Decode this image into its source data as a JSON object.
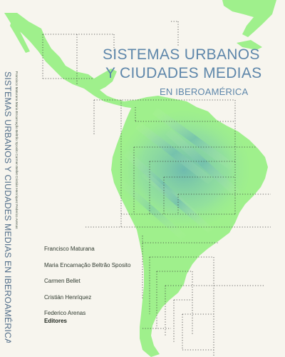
{
  "cover": {
    "title_line1": "SISTEMAS URBANOS",
    "title_line2": "Y CIUDADES MEDIAS",
    "title_line3": "EN IBEROAMÉRICA",
    "authors": [
      "Francisco Maturana",
      "Maria Encarnação Beltrão Sposito",
      "Carmen Bellet",
      "Cristián Henríquez",
      "Federico Arenas"
    ],
    "editors_label": "Editores",
    "title_color": "#5d86aa",
    "map_color": "#9ff08c",
    "map_accent_color": "#5fb5a6"
  },
  "spine": {
    "title": "SISTEMAS URBANOS Y CIUDADES MEDIAS EN IBEROAMÉRICA",
    "authors": "Francisco Maturana    Maria Encarnação Beltrão Sposito    Carmen Bellet    Cristián Henríquez    Federico Arenas"
  }
}
